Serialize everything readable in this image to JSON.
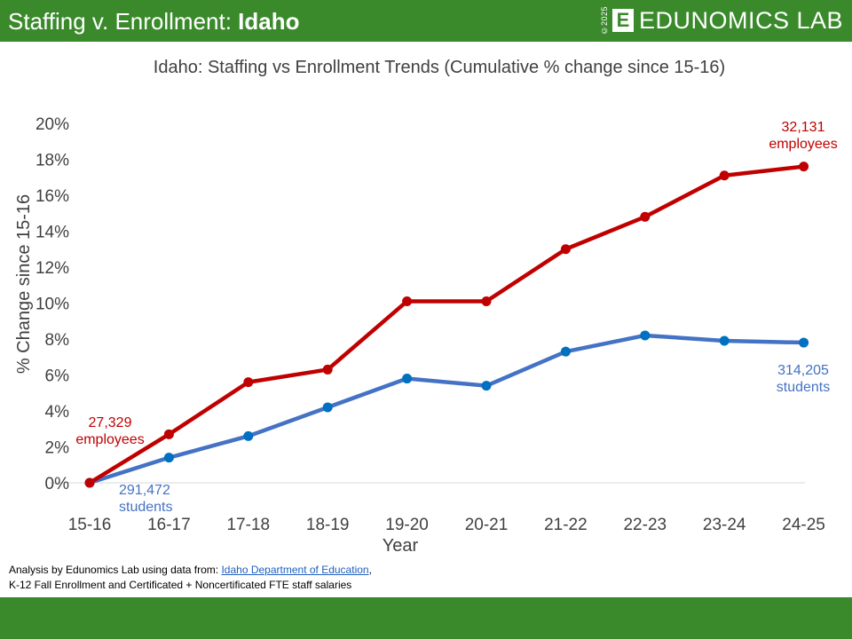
{
  "header": {
    "title_prefix": "Staffing v. Enrollment: ",
    "title_state": "Idaho",
    "brand_year": "©2025",
    "brand_logo_letter": "E",
    "brand_name": "EDUNOMICS LAB",
    "background_color": "#3a8a2c"
  },
  "chart_data": {
    "type": "line",
    "title": "Idaho: Staffing vs Enrollment Trends (Cumulative % change since 15-16)",
    "xlabel": "Year",
    "ylabel": "% Change since 15-16",
    "categories": [
      "15-16",
      "16-17",
      "17-18",
      "18-19",
      "19-20",
      "20-21",
      "21-22",
      "22-23",
      "23-24",
      "24-25"
    ],
    "ylim": [
      0,
      20
    ],
    "yticks": [
      0,
      2,
      4,
      6,
      8,
      10,
      12,
      14,
      16,
      18,
      20
    ],
    "ytick_labels": [
      "0%",
      "2%",
      "4%",
      "6%",
      "8%",
      "10%",
      "12%",
      "14%",
      "16%",
      "18%",
      "20%"
    ],
    "grid": false,
    "legend": "none",
    "series": [
      {
        "key": "employees",
        "color": "#c00000",
        "values": [
          0,
          2.7,
          5.6,
          6.3,
          10.1,
          10.1,
          13.0,
          14.8,
          17.1,
          17.6
        ]
      },
      {
        "key": "students",
        "color": "#4472c4",
        "marker_color": "#0070c0",
        "values": [
          0,
          1.4,
          2.6,
          4.2,
          5.8,
          5.4,
          7.3,
          8.2,
          7.9,
          7.8
        ]
      }
    ],
    "annotations": [
      {
        "series": "employees",
        "color": "#c00000",
        "lines": [
          "27,329",
          "employees"
        ]
      },
      {
        "series": "employees",
        "color": "#c00000",
        "lines": [
          "32,131",
          "employees"
        ]
      },
      {
        "series": "students",
        "color": "#4472c4",
        "lines": [
          "291,472",
          "students"
        ]
      },
      {
        "series": "students",
        "color": "#4472c4",
        "lines": [
          "314,205",
          "students"
        ]
      }
    ]
  },
  "footer": {
    "line1_prefix": "Analysis by Edunomics Lab using data from: ",
    "line1_link": "Idaho Department of Education",
    "line1_suffix": ",",
    "line2": "K-12 Fall Enrollment and Certificated + Noncertificated FTE staff salaries",
    "link_color": "#1f5fbf"
  }
}
